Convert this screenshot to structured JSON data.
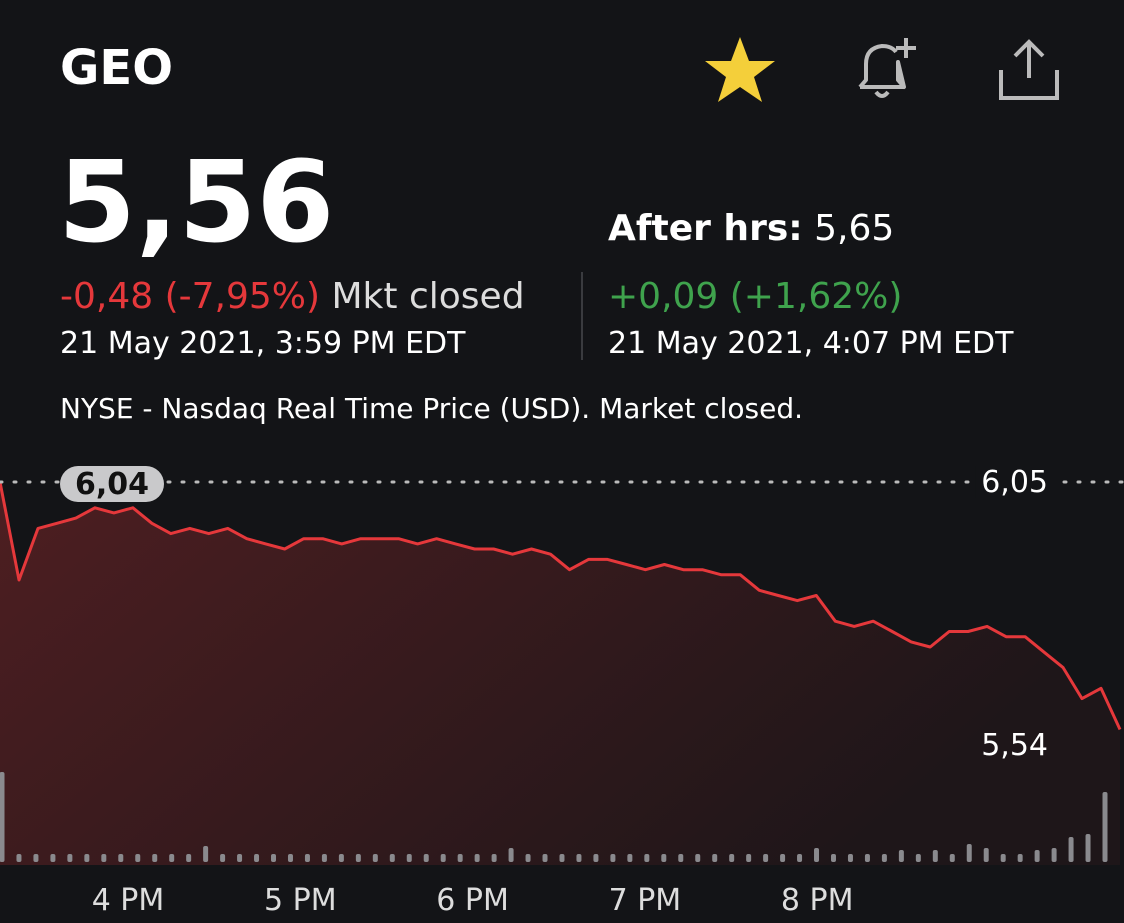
{
  "header": {
    "symbol": "GEO"
  },
  "quote": {
    "price": "5,56",
    "change": "-0,48 (-7,95%)",
    "status": "Mkt closed",
    "time": "21 May 2021, 3:59 PM EDT",
    "after_label": "After hrs:",
    "after_price": "5,65",
    "after_change": "+0,09 (+1,62%)",
    "after_time": "21 May 2021, 4:07 PM EDT",
    "source": "NYSE - Nasdaq Real Time Price (USD). Market closed."
  },
  "chart_data": {
    "type": "line",
    "series": [
      {
        "color": "#e5383b",
        "values": [
          6.05,
          5.86,
          5.96,
          5.97,
          5.98,
          6.0,
          5.99,
          6.0,
          5.97,
          5.95,
          5.96,
          5.95,
          5.96,
          5.94,
          5.93,
          5.92,
          5.94,
          5.94,
          5.93,
          5.94,
          5.94,
          5.94,
          5.93,
          5.94,
          5.93,
          5.92,
          5.92,
          5.91,
          5.92,
          5.91,
          5.88,
          5.9,
          5.9,
          5.89,
          5.88,
          5.89,
          5.88,
          5.88,
          5.87,
          5.87,
          5.84,
          5.83,
          5.82,
          5.83,
          5.78,
          5.77,
          5.78,
          5.76,
          5.74,
          5.73,
          5.76,
          5.76,
          5.77,
          5.75,
          5.75,
          5.72,
          5.69,
          5.63,
          5.65,
          5.57
        ]
      }
    ],
    "volume": [
      90,
      8,
      8,
      8,
      8,
      8,
      8,
      8,
      8,
      8,
      8,
      8,
      16,
      8,
      8,
      8,
      8,
      8,
      8,
      8,
      8,
      8,
      8,
      8,
      8,
      8,
      8,
      8,
      8,
      8,
      14,
      8,
      8,
      8,
      8,
      8,
      8,
      8,
      8,
      8,
      8,
      8,
      8,
      8,
      8,
      8,
      8,
      8,
      14,
      8,
      8,
      8,
      8,
      12,
      8,
      12,
      8,
      18,
      14,
      8,
      8,
      12,
      14,
      25,
      28,
      70
    ],
    "x_labels": [
      "4 PM",
      "5 PM",
      "6 PM",
      "7 PM",
      "8 PM"
    ],
    "ylim": [
      5.54,
      6.05
    ],
    "yticks": [
      {
        "value": 5.54,
        "label": "5,54"
      },
      {
        "value": 6.05,
        "label": "6,05"
      }
    ],
    "annotation": "6,04"
  }
}
